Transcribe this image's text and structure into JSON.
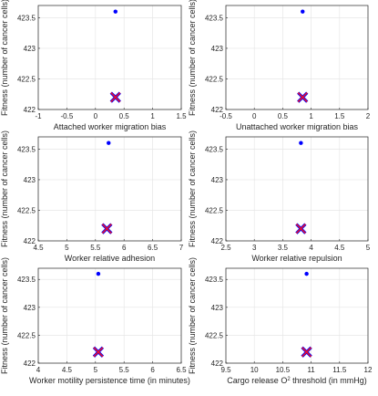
{
  "chart_data": [
    {
      "type": "scatter",
      "title": "",
      "xlabel": "Attached worker migration bias",
      "ylabel": "Fitness (number of cancer cells)",
      "xlim": [
        -1,
        1.5
      ],
      "ylim": [
        422,
        423.7
      ],
      "xticks": [
        "-1",
        "-0.5",
        "0",
        "0.5",
        "1",
        "1.5"
      ],
      "yticks": [
        "422",
        "422.5",
        "423",
        "423.5"
      ],
      "grid": true,
      "points": [
        {
          "x": 0.35,
          "y": 423.6,
          "marker": "dot"
        },
        {
          "x": 0.35,
          "y": 422.2,
          "marker": "x"
        }
      ]
    },
    {
      "type": "scatter",
      "title": "",
      "xlabel": "Unattached worker migration bias",
      "ylabel": "Fitness (number of cancer cells)",
      "xlim": [
        -0.5,
        2
      ],
      "ylim": [
        422,
        423.7
      ],
      "xticks": [
        "-0.5",
        "0",
        "0.5",
        "1",
        "1.5",
        "2"
      ],
      "yticks": [
        "422",
        "422.5",
        "423",
        "423.5"
      ],
      "grid": true,
      "points": [
        {
          "x": 0.85,
          "y": 423.6,
          "marker": "dot"
        },
        {
          "x": 0.85,
          "y": 422.2,
          "marker": "x"
        }
      ]
    },
    {
      "type": "scatter",
      "title": "",
      "xlabel": "Worker relative adhesion",
      "ylabel": "Fitness (number of cancer cells)",
      "xlim": [
        4.5,
        7
      ],
      "ylim": [
        422,
        423.7
      ],
      "xticks": [
        "4.5",
        "5",
        "5.5",
        "6",
        "6.5",
        "7"
      ],
      "yticks": [
        "422",
        "422.5",
        "423",
        "423.5"
      ],
      "grid": true,
      "points": [
        {
          "x": 5.73,
          "y": 423.6,
          "marker": "dot"
        },
        {
          "x": 5.7,
          "y": 422.2,
          "marker": "x"
        }
      ]
    },
    {
      "type": "scatter",
      "title": "",
      "xlabel": "Worker relative repulsion",
      "ylabel": "Fitness (number of cancer cells)",
      "xlim": [
        2.5,
        5
      ],
      "ylim": [
        422,
        423.7
      ],
      "xticks": [
        "2.5",
        "3",
        "3.5",
        "4",
        "4.5",
        "5"
      ],
      "yticks": [
        "422",
        "422.5",
        "423",
        "423.5"
      ],
      "grid": true,
      "points": [
        {
          "x": 3.82,
          "y": 423.6,
          "marker": "dot"
        },
        {
          "x": 3.82,
          "y": 422.2,
          "marker": "x"
        }
      ]
    },
    {
      "type": "scatter",
      "title": "",
      "xlabel": "Worker motility persistence time (in minutes)",
      "ylabel": "Fitness (number of cancer cells)",
      "xlim": [
        4,
        6.5
      ],
      "ylim": [
        422,
        423.7
      ],
      "xticks": [
        "4",
        "4.5",
        "5",
        "5.5",
        "6",
        "6.5"
      ],
      "yticks": [
        "422",
        "422.5",
        "423",
        "423.5"
      ],
      "grid": true,
      "points": [
        {
          "x": 5.05,
          "y": 423.6,
          "marker": "dot"
        },
        {
          "x": 5.05,
          "y": 422.2,
          "marker": "x"
        }
      ]
    },
    {
      "type": "scatter",
      "title": "",
      "xlabel": "Cargo release O",
      "xlabel_sup": "2",
      "xlabel_tail": " threshold (in mmHg)",
      "ylabel": "Fitness (number of cancer cells)",
      "xlim": [
        9.5,
        12
      ],
      "ylim": [
        422,
        423.7
      ],
      "xticks": [
        "9.5",
        "10",
        "10.5",
        "11",
        "11.5",
        "12"
      ],
      "yticks": [
        "422",
        "422.5",
        "423",
        "423.5"
      ],
      "grid": true,
      "points": [
        {
          "x": 10.92,
          "y": 423.6,
          "marker": "dot"
        },
        {
          "x": 10.92,
          "y": 422.2,
          "marker": "x"
        }
      ]
    }
  ],
  "colors": {
    "dot": "#0000ff",
    "x_outer": "#0000ff",
    "x_inner": "#e8112d",
    "axis": "#262626",
    "grid": "#e6e6e6"
  }
}
